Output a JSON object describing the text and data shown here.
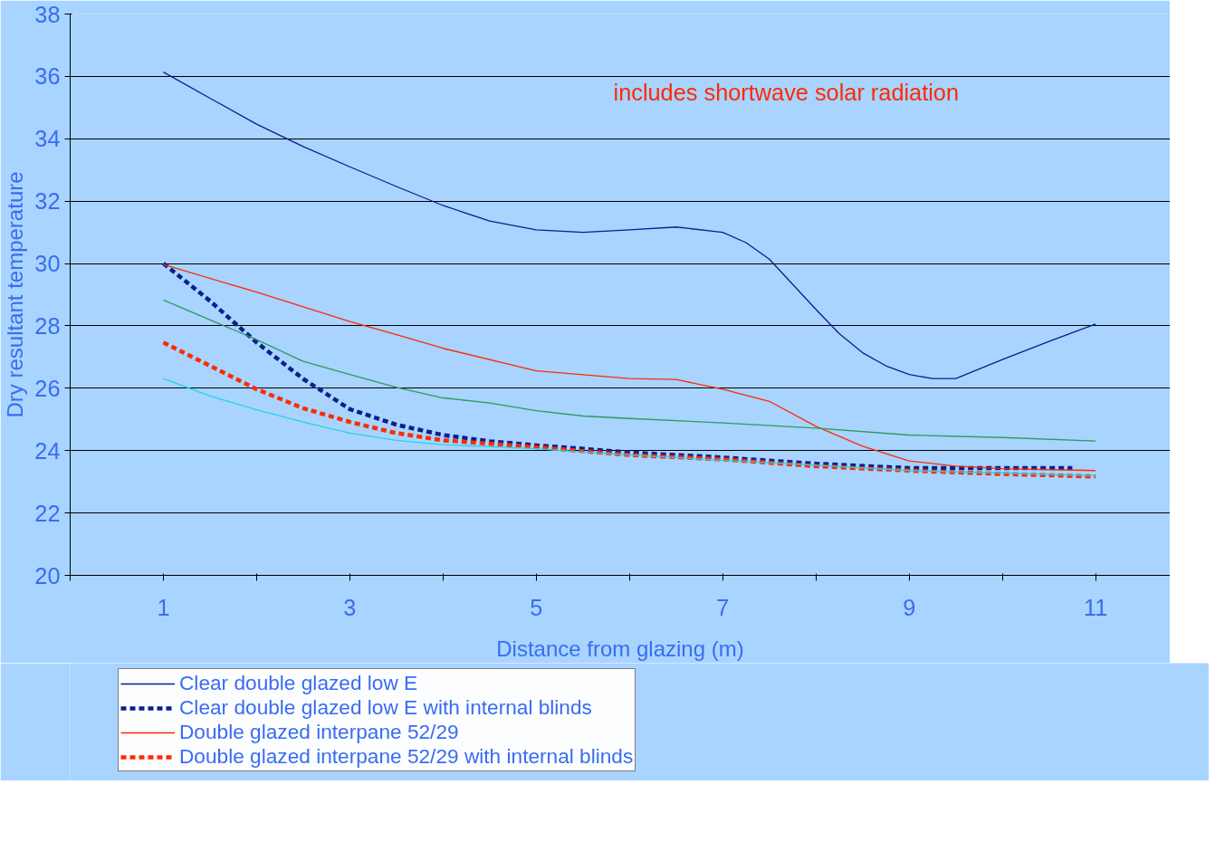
{
  "chart_data": {
    "type": "line",
    "xlabel": "Distance from glazing (m)",
    "ylabel": "Dry resultant temperature",
    "annotations": [
      "includes shortwave solar radiation"
    ],
    "xlim": [
      0,
      11.8
    ],
    "xticks": [
      {
        "value": 0,
        "label": null
      },
      1,
      {
        "value": 2,
        "label": null
      },
      3,
      {
        "value": 4,
        "label": null
      },
      5,
      {
        "value": 6,
        "label": null
      },
      7,
      {
        "value": 8,
        "label": null
      },
      9,
      {
        "value": 10,
        "label": null
      },
      11
    ],
    "ylim": [
      20,
      38
    ],
    "yticks": [
      20,
      22,
      24,
      26,
      28,
      30,
      32,
      34,
      36,
      38
    ],
    "grid": "y",
    "legend": "bottom",
    "marker": "none",
    "series": [
      {
        "name": "Clear double glazed low E",
        "color": "#0a1f8f",
        "line_style": "solid",
        "x": [
          1,
          1.5,
          2,
          2.5,
          3,
          3.5,
          4,
          4.5,
          5,
          5.5,
          6,
          6.5,
          7,
          7.25,
          7.5,
          8,
          8.25,
          8.5,
          8.75,
          9,
          9.25,
          9.5,
          10,
          10.5,
          11
        ],
        "values": [
          36.14,
          35.3,
          34.47,
          33.75,
          33.1,
          32.47,
          31.86,
          31.36,
          31.08,
          31.0,
          31.08,
          31.17,
          31.0,
          30.67,
          30.14,
          28.53,
          27.75,
          27.14,
          26.72,
          26.44,
          26.31,
          26.31,
          26.92,
          27.5,
          28.06
        ]
      },
      {
        "name": "Clear double glazed low E with internal blinds",
        "color": "#0a1f8f",
        "line_style": "dashed",
        "x": [
          1,
          1.5,
          2,
          2.5,
          3,
          3.5,
          4,
          4.5,
          5,
          5.5,
          6,
          6.5,
          7,
          8,
          9,
          10,
          10.75
        ],
        "values": [
          30.0,
          28.8,
          27.47,
          26.3,
          25.33,
          24.83,
          24.5,
          24.3,
          24.17,
          24.06,
          23.94,
          23.86,
          23.78,
          23.58,
          23.44,
          23.44,
          23.44
        ]
      },
      {
        "name": "Double glazed interpane 52/29",
        "color": "#ff2a00",
        "line_style": "solid",
        "x": [
          1,
          2,
          3,
          3.5,
          4,
          5,
          6,
          6.5,
          7,
          7.5,
          8,
          8.5,
          9,
          9.5,
          10,
          11
        ],
        "values": [
          29.97,
          29.08,
          28.14,
          27.72,
          27.28,
          26.56,
          26.31,
          26.28,
          25.97,
          25.58,
          24.78,
          24.14,
          23.67,
          23.5,
          23.42,
          23.36
        ]
      },
      {
        "name": "Double glazed interpane 52/29 with internal blinds",
        "color": "#ff2a00",
        "line_style": "dashed",
        "x": [
          1,
          1.5,
          2,
          2.5,
          3,
          3.5,
          4,
          5,
          6,
          7,
          8,
          9,
          10,
          11
        ],
        "values": [
          27.47,
          26.72,
          25.97,
          25.36,
          24.92,
          24.56,
          24.33,
          24.11,
          23.86,
          23.72,
          23.5,
          23.36,
          23.25,
          23.17
        ]
      },
      {
        "color": "#2e9a5c",
        "line_style": "solid",
        "x": [
          1,
          2,
          2.5,
          3,
          3.5,
          4,
          4.5,
          5,
          5.5,
          6,
          7,
          8,
          9,
          10,
          11
        ],
        "values": [
          28.83,
          27.56,
          26.86,
          26.44,
          26.03,
          25.69,
          25.53,
          25.28,
          25.11,
          25.03,
          24.89,
          24.72,
          24.5,
          24.42,
          24.31
        ]
      },
      {
        "color": "#22d4e8",
        "line_style": "solid",
        "x": [
          1,
          1.5,
          2,
          2.5,
          3,
          3.5,
          4,
          5,
          6,
          7,
          8,
          9,
          10,
          11
        ],
        "values": [
          26.31,
          25.75,
          25.31,
          24.92,
          24.56,
          24.33,
          24.19,
          24.06,
          23.86,
          23.69,
          23.53,
          23.36,
          23.28,
          23.19
        ]
      }
    ]
  }
}
